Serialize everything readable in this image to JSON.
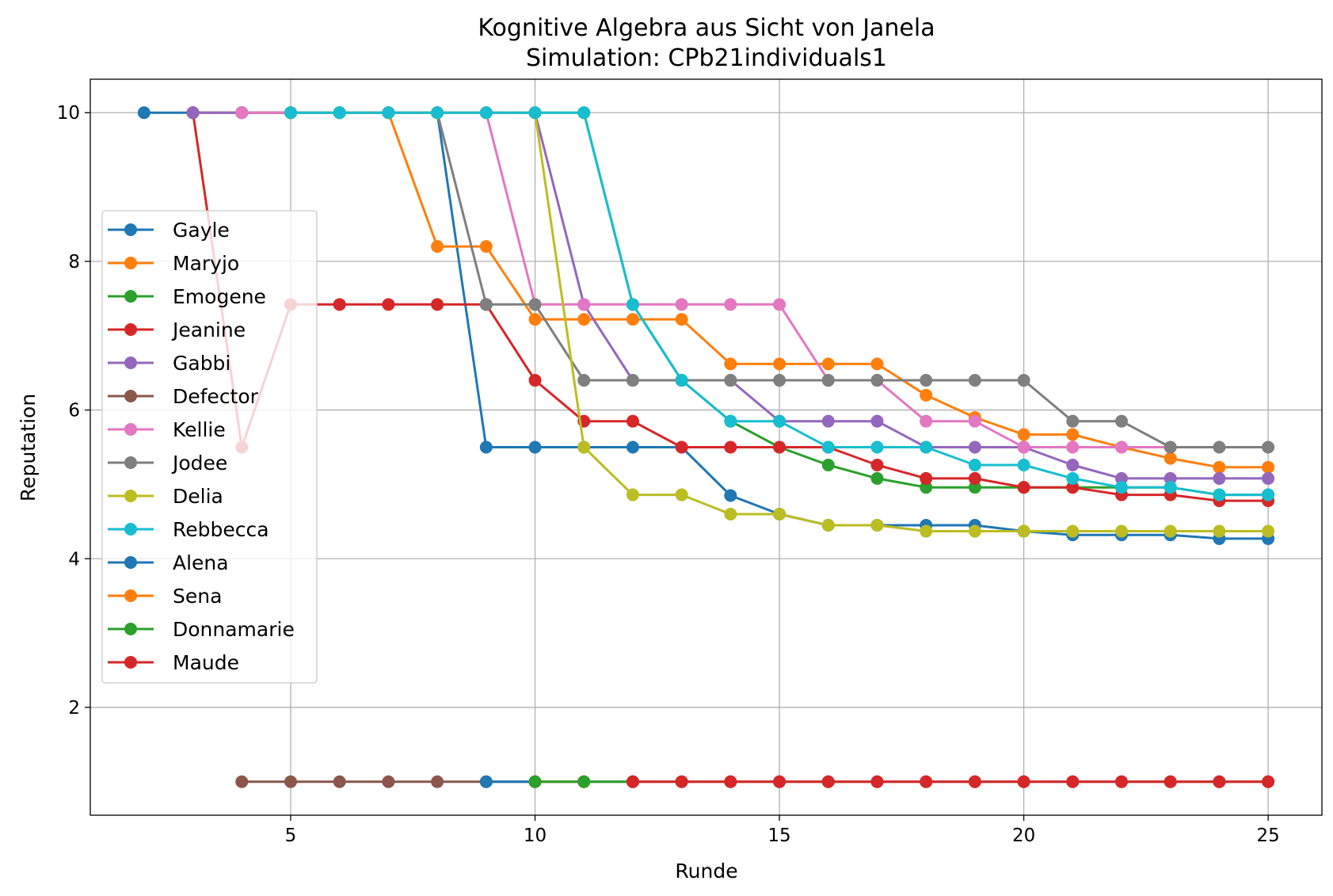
{
  "chart_data": {
    "type": "line",
    "title": "Kognitive Algebra aus Sicht von Janela",
    "subtitle": "Simulation: CPb21individuals1",
    "xlabel": "Runde",
    "ylabel": "Reputation",
    "xlim": [
      0.9,
      26.1
    ],
    "ylim": [
      0.55,
      10.45
    ],
    "xticks": [
      5,
      10,
      15,
      20,
      25
    ],
    "yticks": [
      2,
      4,
      6,
      8,
      10
    ],
    "grid": true,
    "legend_position": "center-left",
    "series": [
      {
        "name": "Gayle",
        "color": "#1f77b4",
        "x": [
          2,
          3,
          4,
          5,
          6,
          7,
          8,
          9,
          10,
          11,
          12,
          13,
          14,
          15,
          16,
          17,
          18,
          19,
          20,
          21,
          22,
          23,
          24,
          25
        ],
        "y": [
          10,
          10,
          10,
          10,
          10,
          10,
          10,
          5.5,
          5.5,
          5.5,
          5.5,
          5.5,
          4.85,
          4.6,
          4.45,
          4.45,
          4.45,
          4.45,
          4.37,
          4.32,
          4.32,
          4.32,
          4.27,
          4.27
        ]
      },
      {
        "name": "Maryjo",
        "color": "#ff7f0e",
        "x": [
          3,
          4,
          5,
          6,
          7,
          8,
          9,
          10,
          11,
          12,
          13,
          14,
          15,
          16,
          17,
          18,
          19,
          20,
          21,
          22,
          23,
          24,
          25
        ],
        "y": [
          10,
          10,
          10,
          10,
          10,
          8.2,
          8.2,
          7.22,
          7.22,
          7.22,
          7.22,
          6.62,
          6.62,
          6.62,
          6.62,
          6.2,
          5.9,
          5.67,
          5.67,
          5.5,
          5.35,
          5.23,
          5.23
        ]
      },
      {
        "name": "Emogene",
        "color": "#2ca02c",
        "x": [
          4,
          5,
          6,
          7,
          8,
          9,
          10,
          11,
          12,
          13,
          14,
          15,
          16,
          17,
          18,
          19,
          20,
          21,
          22,
          23,
          24,
          25
        ],
        "y": [
          10,
          10,
          10,
          10,
          10,
          10,
          10,
          10,
          7.42,
          6.4,
          5.85,
          5.5,
          5.26,
          5.08,
          4.96,
          4.96,
          4.96,
          4.96,
          4.96,
          4.96,
          4.86,
          4.86
        ]
      },
      {
        "name": "Jeanine",
        "color": "#d62728",
        "x": [
          3,
          4,
          5,
          6,
          7,
          8,
          9,
          10,
          11,
          12,
          13,
          14,
          15,
          16,
          17,
          18,
          19,
          20,
          21,
          22,
          23,
          24,
          25
        ],
        "y": [
          10,
          5.5,
          7.42,
          7.42,
          7.42,
          7.42,
          7.42,
          6.4,
          5.85,
          5.85,
          5.5,
          5.5,
          5.5,
          5.5,
          5.26,
          5.08,
          5.08,
          4.96,
          4.96,
          4.86,
          4.86,
          4.78,
          4.78
        ]
      },
      {
        "name": "Gabbi",
        "color": "#9467bd",
        "x": [
          3,
          4,
          5,
          6,
          7,
          8,
          9,
          10,
          11,
          12,
          13,
          14,
          15,
          16,
          17,
          18,
          19,
          20,
          21,
          22,
          23,
          24,
          25
        ],
        "y": [
          10,
          10,
          10,
          10,
          10,
          10,
          10,
          10,
          7.42,
          6.4,
          6.4,
          6.4,
          5.85,
          5.85,
          5.85,
          5.5,
          5.5,
          5.5,
          5.26,
          5.08,
          5.08,
          5.08,
          5.08
        ]
      },
      {
        "name": "Defector",
        "color": "#8c564b",
        "x": [
          4,
          5,
          6,
          7,
          8,
          9,
          10,
          11,
          12,
          13,
          14,
          15,
          16,
          17,
          18,
          19,
          20,
          21,
          22,
          23,
          24,
          25
        ],
        "y": [
          1,
          1,
          1,
          1,
          1,
          1,
          1,
          1,
          1,
          1,
          1,
          1,
          1,
          1,
          1,
          1,
          1,
          1,
          1,
          1,
          1,
          1
        ]
      },
      {
        "name": "Kellie",
        "color": "#e377c2",
        "x": [
          4,
          5,
          6,
          7,
          8,
          9,
          10,
          11,
          12,
          13,
          14,
          15,
          16,
          17,
          18,
          19,
          20,
          21,
          22,
          23
        ],
        "y": [
          10,
          10,
          10,
          10,
          10,
          10,
          7.42,
          7.42,
          7.42,
          7.42,
          7.42,
          7.42,
          6.4,
          6.4,
          5.85,
          5.85,
          5.5,
          5.5,
          5.5,
          5.5
        ]
      },
      {
        "name": "Jodee",
        "color": "#7f7f7f",
        "x": [
          5,
          6,
          7,
          8,
          9,
          10,
          11,
          12,
          13,
          14,
          15,
          16,
          17,
          18,
          19,
          20,
          21,
          22,
          23,
          24,
          25
        ],
        "y": [
          10,
          10,
          10,
          10,
          7.42,
          7.42,
          6.4,
          6.4,
          6.4,
          6.4,
          6.4,
          6.4,
          6.4,
          6.4,
          6.4,
          6.4,
          5.85,
          5.85,
          5.5,
          5.5,
          5.5
        ]
      },
      {
        "name": "Delia",
        "color": "#bcbd22",
        "x": [
          5,
          6,
          7,
          8,
          9,
          10,
          11,
          12,
          13,
          14,
          15,
          16,
          17,
          18,
          19,
          20,
          21,
          22,
          23,
          24,
          25
        ],
        "y": [
          10,
          10,
          10,
          10,
          10,
          10,
          5.5,
          4.86,
          4.86,
          4.6,
          4.6,
          4.45,
          4.45,
          4.37,
          4.37,
          4.37,
          4.37,
          4.37,
          4.37,
          4.37,
          4.37
        ]
      },
      {
        "name": "Rebbecca",
        "color": "#17becf",
        "x": [
          5,
          6,
          7,
          8,
          9,
          10,
          11,
          12,
          13,
          14,
          15,
          16,
          17,
          18,
          19,
          20,
          21,
          22,
          23,
          24,
          25
        ],
        "y": [
          10,
          10,
          10,
          10,
          10,
          10,
          10,
          7.42,
          6.4,
          5.85,
          5.85,
          5.5,
          5.5,
          5.5,
          5.26,
          5.26,
          5.08,
          4.96,
          4.96,
          4.86,
          4.86
        ]
      },
      {
        "name": "Alena",
        "color": "#1f77b4",
        "x": [
          9,
          10
        ],
        "y": [
          1,
          1
        ]
      },
      {
        "name": "Sena",
        "color": "#ff7f0e",
        "x": [
          10,
          11
        ],
        "y": [
          1,
          1
        ]
      },
      {
        "name": "Donnamarie",
        "color": "#2ca02c",
        "x": [
          10,
          11,
          12
        ],
        "y": [
          1,
          1,
          1
        ]
      },
      {
        "name": "Maude",
        "color": "#d62728",
        "x": [
          12,
          13,
          14,
          15,
          16,
          17,
          18,
          19,
          20,
          21,
          22,
          23,
          24,
          25
        ],
        "y": [
          1,
          1,
          1,
          1,
          1,
          1,
          1,
          1,
          1,
          1,
          1,
          1,
          1,
          1
        ]
      }
    ]
  }
}
